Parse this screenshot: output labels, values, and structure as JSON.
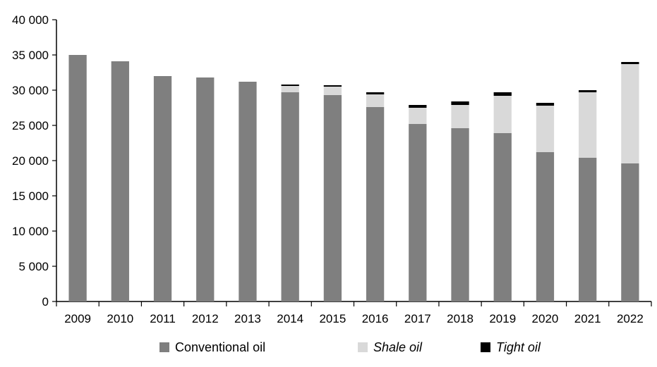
{
  "chart_data": {
    "type": "bar",
    "stacked": true,
    "title": "",
    "xlabel": "",
    "ylabel": "",
    "ylim": [
      0,
      40000
    ],
    "yticks": [
      0,
      5000,
      10000,
      15000,
      20000,
      25000,
      30000,
      35000,
      40000
    ],
    "ytick_labels": [
      "0",
      "5 000",
      "10 000",
      "15 000",
      "20 000",
      "25 000",
      "30 000",
      "35 000",
      "40 000"
    ],
    "categories": [
      "2009",
      "2010",
      "2011",
      "2012",
      "2013",
      "2014",
      "2015",
      "2016",
      "2017",
      "2018",
      "2019",
      "2020",
      "2021",
      "2022"
    ],
    "series": [
      {
        "name": "Conventional oil",
        "color": "#7f7f7f",
        "italic": false,
        "values": [
          35000,
          34100,
          32000,
          31800,
          31200,
          29700,
          29300,
          27600,
          25200,
          24600,
          23900,
          21200,
          20400,
          19600
        ]
      },
      {
        "name": "Shale oil",
        "color": "#d9d9d9",
        "italic": true,
        "values": [
          0,
          0,
          0,
          0,
          0,
          900,
          1200,
          1800,
          2300,
          3300,
          5300,
          6600,
          9300,
          14100
        ]
      },
      {
        "name": "Tight oil",
        "color": "#000000",
        "italic": true,
        "values": [
          0,
          0,
          0,
          0,
          0,
          200,
          200,
          300,
          400,
          500,
          500,
          400,
          300,
          300
        ]
      }
    ],
    "legend_position": "bottom",
    "grid": false
  }
}
